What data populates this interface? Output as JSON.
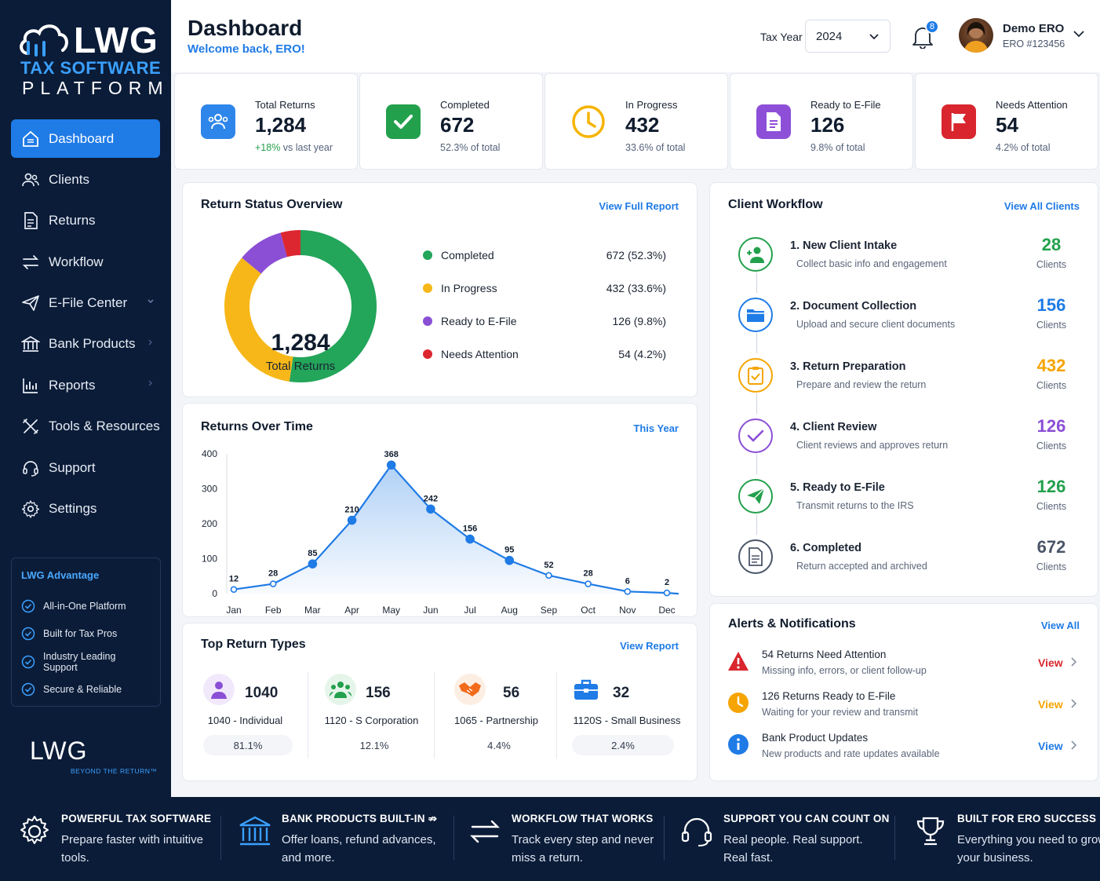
{
  "brand": {
    "name": "LWG",
    "tagline1": "TAX SOFTWARE",
    "tagline2": "PLATFORM",
    "bottom_name": "LWG",
    "bottom_tagline": "BEYOND THE RETURN™"
  },
  "sidebar": {
    "items": [
      {
        "label": "Dashboard",
        "icon": "dashboard-icon"
      },
      {
        "label": "Clients",
        "icon": "users-icon"
      },
      {
        "label": "Returns",
        "icon": "document-icon"
      },
      {
        "label": "Workflow",
        "icon": "workflow-icon"
      },
      {
        "label": "E-File Center",
        "icon": "send-icon"
      },
      {
        "label": "Bank Products",
        "icon": "bank-icon"
      },
      {
        "label": "Reports",
        "icon": "reports-icon"
      },
      {
        "label": "Tools & Resources",
        "icon": "tools-icon"
      },
      {
        "label": "Support",
        "icon": "headset-icon"
      },
      {
        "label": "Settings",
        "icon": "gear-icon"
      }
    ],
    "advantage": {
      "title": "LWG Advantage",
      "items": [
        "All-in-One Platform",
        "Built for Tax Pros",
        "Industry Leading Support",
        "Secure & Reliable"
      ]
    }
  },
  "header": {
    "title": "Dashboard",
    "welcome": "Welcome back, ERO!",
    "tax_year_label": "Tax Year",
    "tax_year_value": "2024",
    "notification_count": "8",
    "user_name": "Demo ERO",
    "user_id": "ERO #123456"
  },
  "stats": [
    {
      "label": "Total Returns",
      "value": "1,284",
      "sub_highlight": "+18%",
      "sub": " vs last year",
      "color": "#2f86ea"
    },
    {
      "label": "Completed",
      "value": "672",
      "sub_highlight": "",
      "sub": "52.3% of total",
      "color": "#23a04c"
    },
    {
      "label": "In Progress",
      "value": "432",
      "sub_highlight": "",
      "sub": "33.6% of total",
      "color": "#f5b400"
    },
    {
      "label": "Ready to E-File",
      "value": "126",
      "sub_highlight": "",
      "sub": "9.8% of total",
      "color": "#8e4fd8"
    },
    {
      "label": "Needs Attention",
      "value": "54",
      "sub_highlight": "",
      "sub": "4.2% of total",
      "color": "#d9262e"
    }
  ],
  "status_overview": {
    "title": "Return Status Overview",
    "link": "View Full Report",
    "center_value": "1,284",
    "center_label": "Total Returns",
    "legend": [
      {
        "name": "Completed",
        "value": "672 (52.3%)",
        "color": "#23a55a"
      },
      {
        "name": "In Progress",
        "value": "432 (33.6%)",
        "color": "#f7b718"
      },
      {
        "name": "Ready to E-File",
        "value": "126 (9.8%)",
        "color": "#8b4fd6"
      },
      {
        "name": "Needs Attention",
        "value": "54 (4.2%)",
        "color": "#dc2630"
      }
    ]
  },
  "chart_data": [
    {
      "type": "pie",
      "title": "Return Status Overview",
      "categories": [
        "Completed",
        "In Progress",
        "Ready to E-File",
        "Needs Attention"
      ],
      "values": [
        672,
        432,
        126,
        54
      ],
      "colors": [
        "#23a55a",
        "#f7b718",
        "#8b4fd6",
        "#dc2630"
      ]
    },
    {
      "type": "area",
      "title": "Returns Over Time",
      "categories": [
        "Jan",
        "Feb",
        "Mar",
        "Apr",
        "May",
        "Jun",
        "Jul",
        "Aug",
        "Sep",
        "Oct",
        "Nov",
        "Dec"
      ],
      "values": [
        12,
        28,
        85,
        210,
        368,
        242,
        156,
        95,
        52,
        28,
        6,
        2
      ],
      "yticks": [
        0,
        100,
        200,
        300,
        400
      ],
      "ylim": [
        0,
        400
      ],
      "color": "#1f7be6"
    }
  ],
  "returns_over_time": {
    "title": "Returns Over Time",
    "link": "This Year"
  },
  "top_return_types": {
    "title": "Top Return Types",
    "link": "View Report",
    "items": [
      {
        "count": "1040",
        "name": "1040 - Individual",
        "pct": "81.1%",
        "icon": "person-icon",
        "color": "#8b4fd6"
      },
      {
        "count": "156",
        "name": "1120 - S Corporation",
        "pct": "12.1%",
        "icon": "group-icon",
        "color": "#23a04c"
      },
      {
        "count": "56",
        "name": "1065 - Partnership",
        "pct": "4.4%",
        "icon": "handshake-icon",
        "color": "#f26b1d"
      },
      {
        "count": "32",
        "name": "1120S - Small Business",
        "pct": "2.4%",
        "icon": "briefcase-icon",
        "color": "#1f7be6"
      }
    ]
  },
  "workflow": {
    "title": "Client Workflow",
    "link": "View All Clients",
    "steps": [
      {
        "title": "1. New Client Intake",
        "desc": "Collect basic info and engagement",
        "count": "28",
        "unit": "Clients",
        "color": "#23a04c"
      },
      {
        "title": "2. Document Collection",
        "desc": "Upload and secure client documents",
        "count": "156",
        "unit": "Clients",
        "color": "#1f7be6"
      },
      {
        "title": "3. Return Preparation",
        "desc": "Prepare and review the return",
        "count": "432",
        "unit": "Clients",
        "color": "#f5a400"
      },
      {
        "title": "4. Client Review",
        "desc": "Client reviews and approves return",
        "count": "126",
        "unit": "Clients",
        "color": "#8b4fd6"
      },
      {
        "title": "5. Ready to E-File",
        "desc": "Transmit returns to the IRS",
        "count": "126",
        "unit": "Clients",
        "color": "#23a04c"
      },
      {
        "title": "6. Completed",
        "desc": "Return accepted and archived",
        "count": "672",
        "unit": "Clients",
        "color": "#4a5568"
      }
    ]
  },
  "alerts": {
    "title": "Alerts & Notifications",
    "link": "View All",
    "items": [
      {
        "title": "54 Returns Need Attention",
        "desc": "Missing info, errors, or client follow-up",
        "action": "View",
        "color": "#d9262e"
      },
      {
        "title": "126 Returns Ready to E-File",
        "desc": "Waiting for your review and transmit",
        "action": "View",
        "color": "#f5a400"
      },
      {
        "title": "Bank Product Updates",
        "desc": "New products and rate updates available",
        "action": "View",
        "color": "#1f7be6"
      }
    ]
  },
  "footer": [
    {
      "title": "POWERFUL TAX SOFTWARE",
      "desc": "Prepare faster with intuitive tools."
    },
    {
      "title": "BANK PRODUCTS BUILT-IN ⇏",
      "desc": "Offer loans, refund advances, and more."
    },
    {
      "title": "WORKFLOW THAT WORKS",
      "desc": "Track every step and never miss a return."
    },
    {
      "title": "SUPPORT YOU CAN COUNT ON",
      "desc": "Real people. Real support. Real fast."
    },
    {
      "title": "BUILT FOR ERO SUCCESS",
      "desc": "Everything you need to grow your business."
    }
  ]
}
